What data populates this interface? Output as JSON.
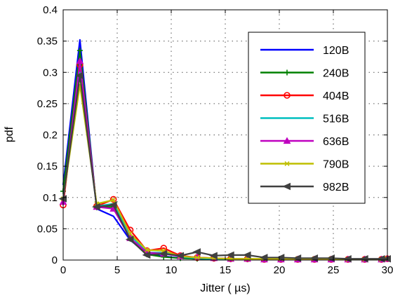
{
  "chart_data": {
    "type": "line",
    "title": "",
    "xlabel": "Jitter ( µs)",
    "ylabel": "pdf",
    "xlim": [
      0,
      30
    ],
    "ylim": [
      0,
      0.4
    ],
    "xticks": [
      0,
      5,
      10,
      15,
      20,
      25,
      30
    ],
    "yticks": [
      0,
      0.05,
      0.1,
      0.15,
      0.2,
      0.25,
      0.3,
      0.35,
      0.4
    ],
    "xtick_labels": [
      "0",
      "5",
      "10",
      "15",
      "20",
      "25",
      "30"
    ],
    "ytick_labels": [
      "0",
      "0.05",
      "0.1",
      "0.15",
      "0.2",
      "0.25",
      "0.3",
      "0.35",
      "0.4"
    ],
    "grid": true,
    "legend_position": "top-right",
    "x": [
      0,
      1.55,
      3.1,
      4.65,
      6.2,
      7.75,
      9.3,
      10.85,
      12.4,
      13.95,
      15.5,
      17.05,
      18.6,
      20.15,
      21.7,
      23.25,
      24.8,
      26.35,
      27.9,
      29.45,
      30
    ],
    "series": [
      {
        "name": "120B",
        "color": "#0000ff",
        "marker": "none",
        "values": [
          0.12,
          0.352,
          0.082,
          0.07,
          0.032,
          0.01,
          0.006,
          0.003,
          0.002,
          0.001,
          0.001,
          0.001,
          0.001,
          0.001,
          0.001,
          0.001,
          0.001,
          0.001,
          0.001,
          0.001,
          0.004
        ]
      },
      {
        "name": "240B",
        "color": "#008000",
        "marker": "plus",
        "values": [
          0.11,
          0.335,
          0.084,
          0.085,
          0.034,
          0.009,
          0.005,
          0.003,
          0.002,
          0.002,
          0.001,
          0.001,
          0.001,
          0.001,
          0.001,
          0.001,
          0.001,
          0.001,
          0.001,
          0.001,
          0.003
        ]
      },
      {
        "name": "404B",
        "color": "#ff0000",
        "marker": "circle",
        "values": [
          0.088,
          0.312,
          0.086,
          0.097,
          0.048,
          0.015,
          0.019,
          0.007,
          0.004,
          0.003,
          0.002,
          0.002,
          0.001,
          0.001,
          0.001,
          0.001,
          0.001,
          0.001,
          0.001,
          0.001,
          0.002
        ]
      },
      {
        "name": "516B",
        "color": "#00bfbf",
        "marker": "none",
        "values": [
          0.095,
          0.3,
          0.086,
          0.09,
          0.04,
          0.012,
          0.012,
          0.005,
          0.003,
          0.002,
          0.002,
          0.002,
          0.001,
          0.001,
          0.001,
          0.001,
          0.001,
          0.001,
          0.001,
          0.001,
          0.002
        ]
      },
      {
        "name": "636B",
        "color": "#bf00bf",
        "marker": "triangle",
        "values": [
          0.093,
          0.318,
          0.085,
          0.082,
          0.035,
          0.012,
          0.01,
          0.006,
          0.004,
          0.003,
          0.002,
          0.002,
          0.001,
          0.001,
          0.001,
          0.001,
          0.001,
          0.001,
          0.001,
          0.001,
          0.002
        ]
      },
      {
        "name": "790B",
        "color": "#bfbf00",
        "marker": "x",
        "values": [
          0.098,
          0.28,
          0.09,
          0.096,
          0.042,
          0.016,
          0.015,
          0.006,
          0.004,
          0.003,
          0.002,
          0.002,
          0.002,
          0.002,
          0.002,
          0.002,
          0.002,
          0.001,
          0.001,
          0.001,
          0.002
        ]
      },
      {
        "name": "982B",
        "color": "#404040",
        "marker": "triangle-left",
        "values": [
          0.098,
          0.295,
          0.085,
          0.088,
          0.033,
          0.008,
          0.01,
          0.007,
          0.013,
          0.007,
          0.008,
          0.008,
          0.004,
          0.004,
          0.003,
          0.003,
          0.003,
          0.002,
          0.002,
          0.002,
          0.002
        ]
      }
    ]
  }
}
